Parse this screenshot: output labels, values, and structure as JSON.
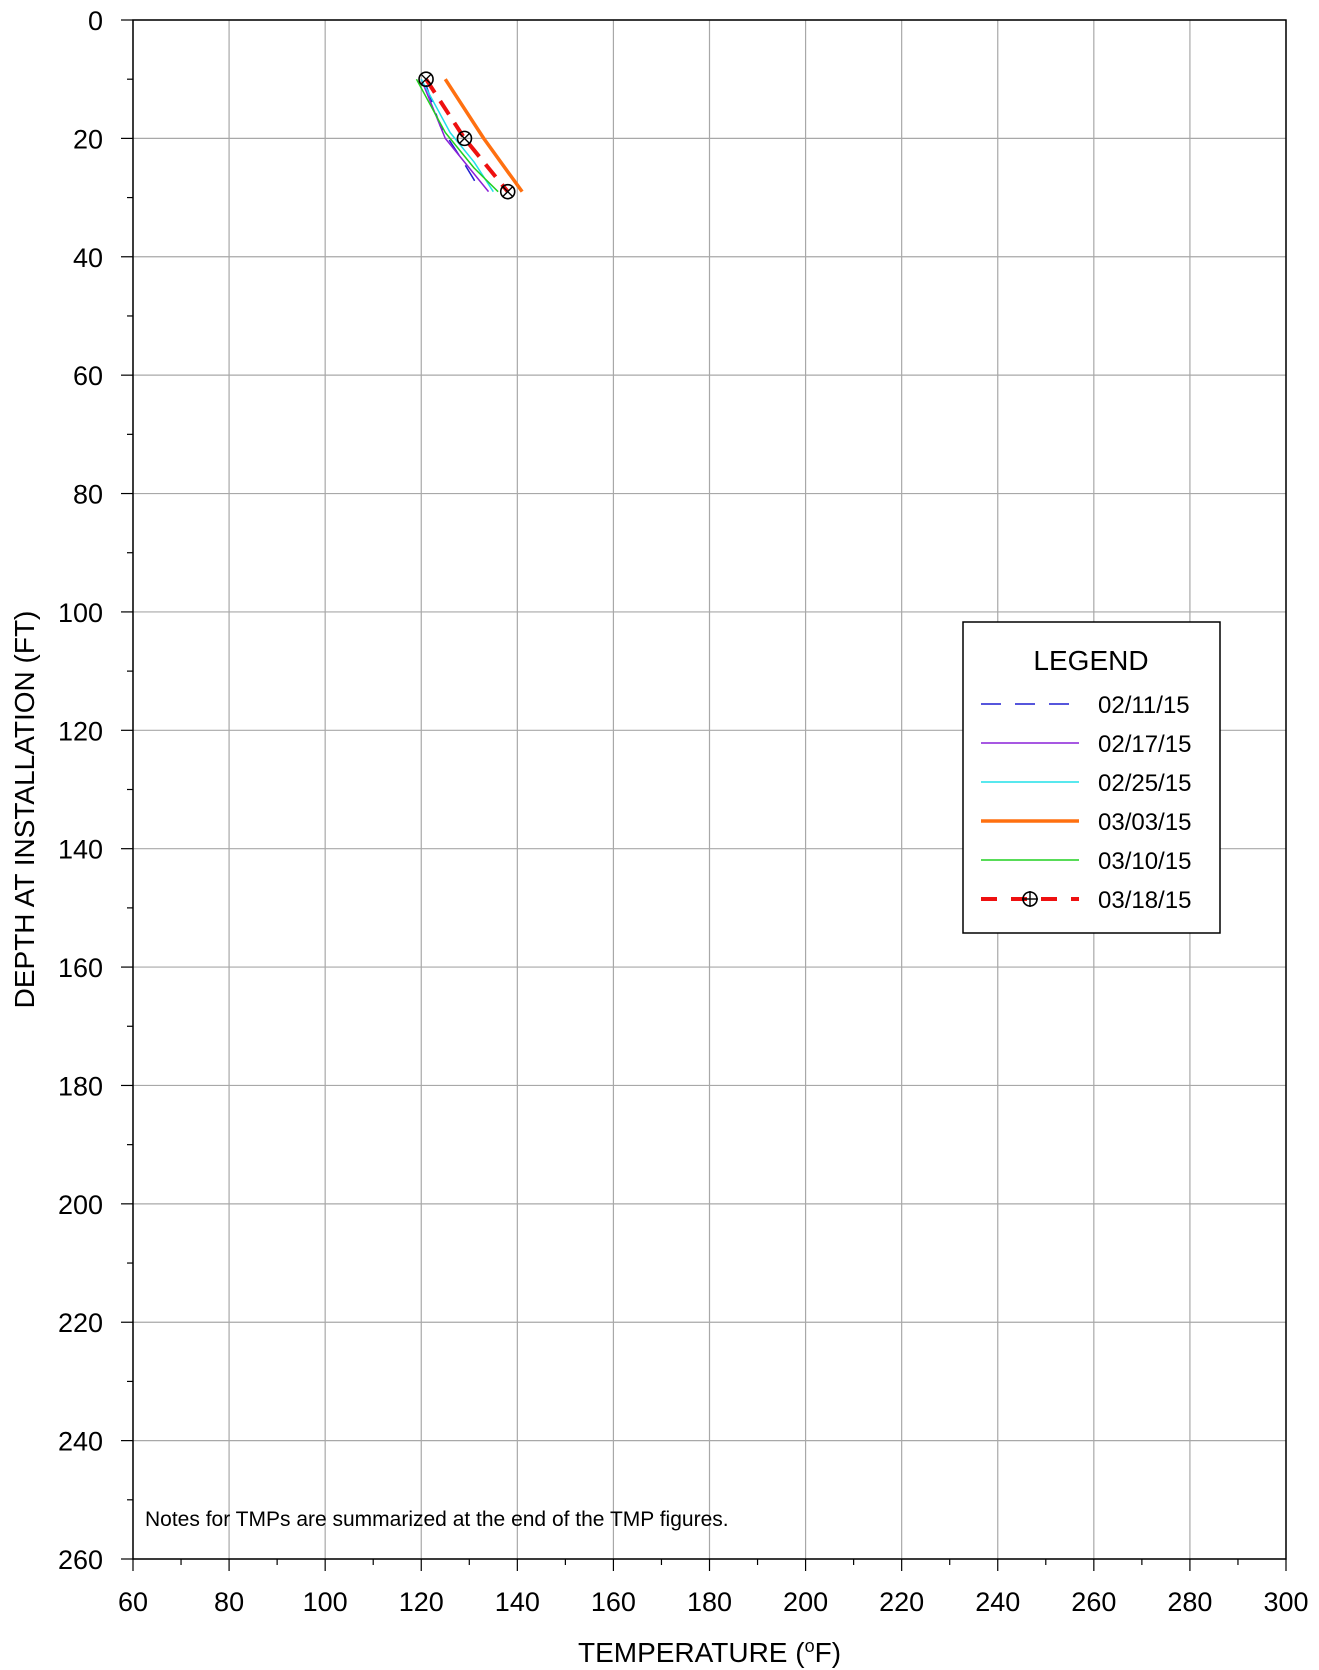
{
  "chart_data": {
    "type": "line",
    "xlabel_main": "TEMPERATURE (",
    "xlabel_sup": "o",
    "xlabel_end": "F)",
    "ylabel": "DEPTH AT INSTALLATION (FT)",
    "xlim": [
      60,
      300
    ],
    "ylim": [
      0,
      260
    ],
    "y_inverted": true,
    "x_ticks": [
      60,
      80,
      100,
      120,
      140,
      160,
      180,
      200,
      220,
      240,
      260,
      280,
      300
    ],
    "x_minor_step": 10,
    "y_ticks": [
      0,
      20,
      40,
      60,
      80,
      100,
      120,
      140,
      160,
      180,
      200,
      220,
      240,
      260
    ],
    "y_minor_step": 10,
    "grid": true,
    "legend_title": "LEGEND",
    "legend_position": "right",
    "note": "Notes for TMPs are summarized at the end of the TMP figures.",
    "series": [
      {
        "name": "02/11/15",
        "color": "#1f1fd0",
        "style": "dashed",
        "width": 1.5,
        "marker": "none",
        "points": [
          [
            121,
            11
          ],
          [
            124,
            18
          ],
          [
            128,
            23
          ],
          [
            131,
            27
          ],
          [
            132,
            29
          ]
        ]
      },
      {
        "name": "02/17/15",
        "color": "#8a20d8",
        "style": "solid",
        "width": 1.5,
        "marker": "none",
        "points": [
          [
            120,
            10
          ],
          [
            125,
            20
          ],
          [
            130,
            25
          ],
          [
            134,
            29
          ]
        ]
      },
      {
        "name": "02/25/15",
        "color": "#20e0e8",
        "style": "solid",
        "width": 1.5,
        "marker": "none",
        "points": [
          [
            120,
            10
          ],
          [
            126,
            19
          ],
          [
            131,
            24
          ],
          [
            135,
            29
          ]
        ]
      },
      {
        "name": "03/03/15",
        "color": "#ff7010",
        "style": "solid",
        "width": 3.5,
        "marker": "none",
        "points": [
          [
            125,
            10
          ],
          [
            133,
            20
          ],
          [
            141,
            29
          ]
        ]
      },
      {
        "name": "03/10/15",
        "color": "#20d020",
        "style": "solid",
        "width": 1.5,
        "marker": "none",
        "points": [
          [
            119,
            10
          ],
          [
            125,
            19
          ],
          [
            131,
            25
          ],
          [
            136,
            29
          ]
        ]
      },
      {
        "name": "03/18/15",
        "color": "#ee1010",
        "style": "dashed-thick",
        "width": 4,
        "marker": "circle-x",
        "points": [
          [
            121,
            10
          ],
          [
            129,
            20
          ],
          [
            138,
            29
          ]
        ]
      }
    ]
  }
}
